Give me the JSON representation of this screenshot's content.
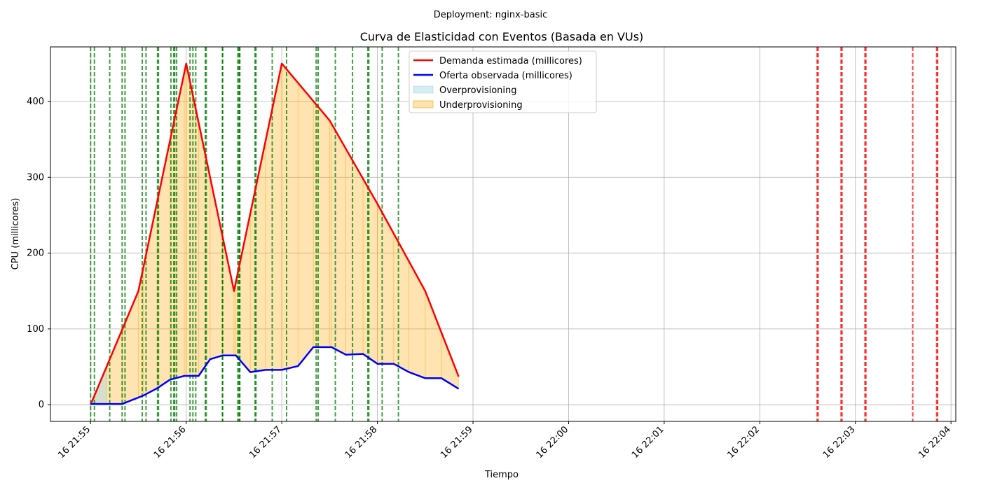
{
  "chart_data": {
    "type": "line",
    "suptitle": "Deployment: nginx-basic",
    "title": "Curva de Elasticidad con Eventos (Basada en VUs)",
    "xlabel": "Tiempo",
    "ylabel": "CPU (millicores)",
    "x_unit": "minutes since 16 21:55",
    "x_ticks": [
      {
        "value": 0,
        "label": "16 21:55"
      },
      {
        "value": 1,
        "label": "16 21:56"
      },
      {
        "value": 2,
        "label": "16 21:57"
      },
      {
        "value": 3,
        "label": "16 21:58"
      },
      {
        "value": 4,
        "label": "16 21:59"
      },
      {
        "value": 5,
        "label": "16 22:00"
      },
      {
        "value": 6,
        "label": "16 22:01"
      },
      {
        "value": 7,
        "label": "16 22:02"
      },
      {
        "value": 8,
        "label": "16 22:03"
      },
      {
        "value": 9,
        "label": "16 22:04"
      }
    ],
    "y_ticks": [
      0,
      100,
      200,
      300,
      400
    ],
    "xlim": [
      -0.42,
      9.05
    ],
    "ylim": [
      -22,
      472
    ],
    "grid": true,
    "legend_position": "top-center",
    "series": [
      {
        "name": "Demanda estimada (millicores)",
        "color": "#ff0000",
        "points": [
          [
            0.0,
            0
          ],
          [
            0.5,
            150
          ],
          [
            1.0,
            450
          ],
          [
            1.5,
            150
          ],
          [
            2.0,
            450
          ],
          [
            2.5,
            375
          ],
          [
            3.0,
            265
          ],
          [
            3.5,
            150
          ],
          [
            3.85,
            37
          ]
        ]
      },
      {
        "name": "Oferta observada (millicores)",
        "color": "#0000ff",
        "points": [
          [
            0.0,
            1
          ],
          [
            0.17,
            1
          ],
          [
            0.33,
            1
          ],
          [
            0.55,
            12
          ],
          [
            0.7,
            22
          ],
          [
            0.83,
            33
          ],
          [
            0.98,
            38
          ],
          [
            1.13,
            38
          ],
          [
            1.25,
            60
          ],
          [
            1.38,
            65
          ],
          [
            1.52,
            65
          ],
          [
            1.67,
            43
          ],
          [
            1.83,
            46
          ],
          [
            2.0,
            46
          ],
          [
            2.17,
            51
          ],
          [
            2.33,
            76
          ],
          [
            2.52,
            76
          ],
          [
            2.67,
            66
          ],
          [
            2.85,
            67
          ],
          [
            3.0,
            54
          ],
          [
            3.17,
            54
          ],
          [
            3.33,
            43
          ],
          [
            3.5,
            35
          ],
          [
            3.67,
            35
          ],
          [
            3.85,
            21
          ]
        ]
      }
    ],
    "fills": [
      {
        "name": "Overprovisioning",
        "color": "#add8e6",
        "opacity": 0.5
      },
      {
        "name": "Underprovisioning",
        "color": "#ffa500",
        "opacity": 0.3
      }
    ],
    "event_lines": {
      "green": {
        "color": "#008000",
        "x": [
          0.0,
          0.04,
          0.2,
          0.33,
          0.36,
          0.54,
          0.58,
          0.7,
          0.71,
          0.84,
          0.87,
          0.88,
          0.9,
          1.04,
          1.07,
          1.1,
          1.2,
          1.21,
          1.38,
          1.38,
          1.38,
          1.54,
          1.55,
          1.56,
          1.56,
          1.72,
          1.73,
          1.9,
          2.05,
          2.36,
          2.38,
          2.56,
          2.74,
          2.9,
          2.91,
          3.05,
          3.22
        ]
      },
      "red": {
        "color": "#ff0000",
        "x": [
          7.6,
          7.61,
          7.85,
          7.86,
          8.1,
          8.11,
          8.6,
          8.85,
          8.86
        ]
      }
    }
  }
}
